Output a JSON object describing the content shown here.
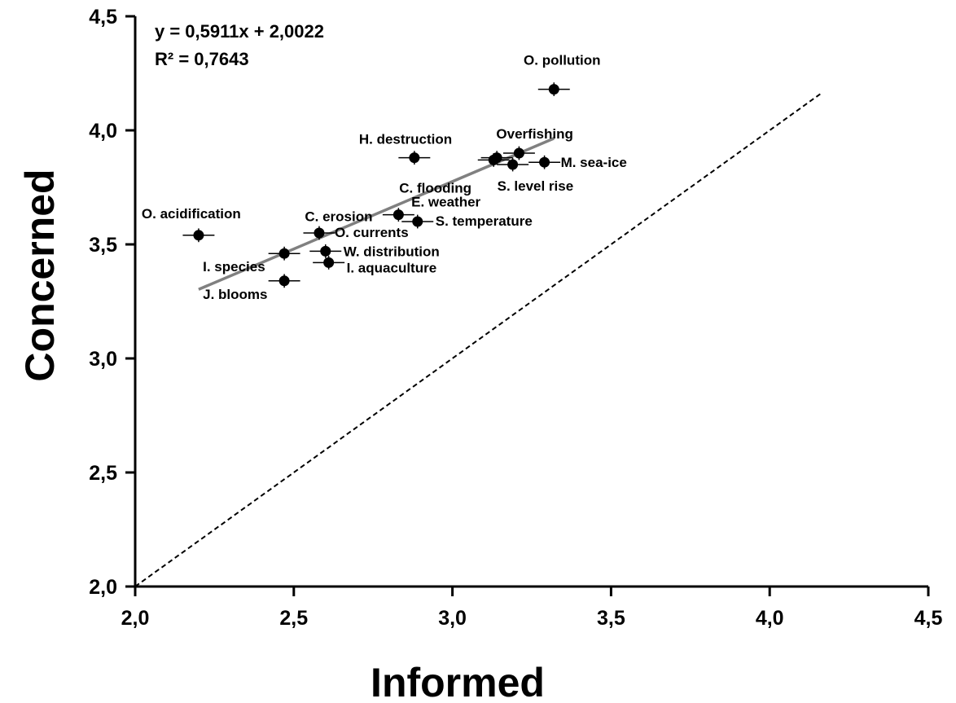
{
  "chart_data": {
    "type": "scatter",
    "title": "",
    "xlabel": "Informed",
    "ylabel": "Concerned",
    "xlim": [
      2.0,
      4.5
    ],
    "ylim": [
      2.0,
      4.5
    ],
    "x_ticks": [
      "2,0",
      "2,5",
      "3,0",
      "3,5",
      "4,0",
      "4,5"
    ],
    "y_ticks": [
      "2,0",
      "2,5",
      "3,0",
      "3,5",
      "4,0",
      "4,5"
    ],
    "grid": false,
    "legend": "none",
    "colors": {
      "points": "#000000",
      "trendline": "#808080",
      "reference_line": "#000000"
    },
    "points": [
      {
        "label": "O. pollution",
        "x": 3.32,
        "y": 4.18,
        "xerr": 0.05,
        "yerr": 0.03
      },
      {
        "label": "Overfishing",
        "x": 3.21,
        "y": 3.9,
        "xerr": 0.05,
        "yerr": 0.03
      },
      {
        "label": "M. sea-ice",
        "x": 3.29,
        "y": 3.86,
        "xerr": 0.05,
        "yerr": 0.03
      },
      {
        "label": "S. level rise",
        "x": 3.19,
        "y": 3.85,
        "xerr": 0.05,
        "yerr": 0.03
      },
      {
        "label": "C. flooding",
        "x": 3.13,
        "y": 3.87,
        "xerr": 0.05,
        "yerr": 0.03
      },
      {
        "label": "E. weather",
        "x": 3.14,
        "y": 3.88,
        "xerr": 0.05,
        "yerr": 0.03
      },
      {
        "label": "H. destruction",
        "x": 2.88,
        "y": 3.88,
        "xerr": 0.05,
        "yerr": 0.03
      },
      {
        "label": "C. erosion",
        "x": 2.83,
        "y": 3.63,
        "xerr": 0.05,
        "yerr": 0.03
      },
      {
        "label": "S. temperature",
        "x": 2.89,
        "y": 3.6,
        "xerr": 0.05,
        "yerr": 0.03
      },
      {
        "label": "O. currents",
        "x": 2.58,
        "y": 3.55,
        "xerr": 0.05,
        "yerr": 0.03
      },
      {
        "label": "W. distribution",
        "x": 2.6,
        "y": 3.47,
        "xerr": 0.05,
        "yerr": 0.03
      },
      {
        "label": "I. aquaculture",
        "x": 2.61,
        "y": 3.42,
        "xerr": 0.05,
        "yerr": 0.03
      },
      {
        "label": "I. species",
        "x": 2.47,
        "y": 3.46,
        "xerr": 0.05,
        "yerr": 0.03
      },
      {
        "label": "J. blooms",
        "x": 2.47,
        "y": 3.34,
        "xerr": 0.05,
        "yerr": 0.03
      },
      {
        "label": "O. acidification",
        "x": 2.2,
        "y": 3.54,
        "xerr": 0.05,
        "yerr": 0.03
      }
    ],
    "trendline": {
      "equation": "y = 0,5911x + 2,0022",
      "r_squared": "R² = 0,7643",
      "slope": 0.5911,
      "intercept": 2.0022,
      "x_range": [
        2.2,
        3.32
      ]
    },
    "reference_line": {
      "style": "dashed",
      "x_range": [
        2.0,
        4.16
      ],
      "y_range": [
        2.0,
        4.16
      ]
    }
  }
}
